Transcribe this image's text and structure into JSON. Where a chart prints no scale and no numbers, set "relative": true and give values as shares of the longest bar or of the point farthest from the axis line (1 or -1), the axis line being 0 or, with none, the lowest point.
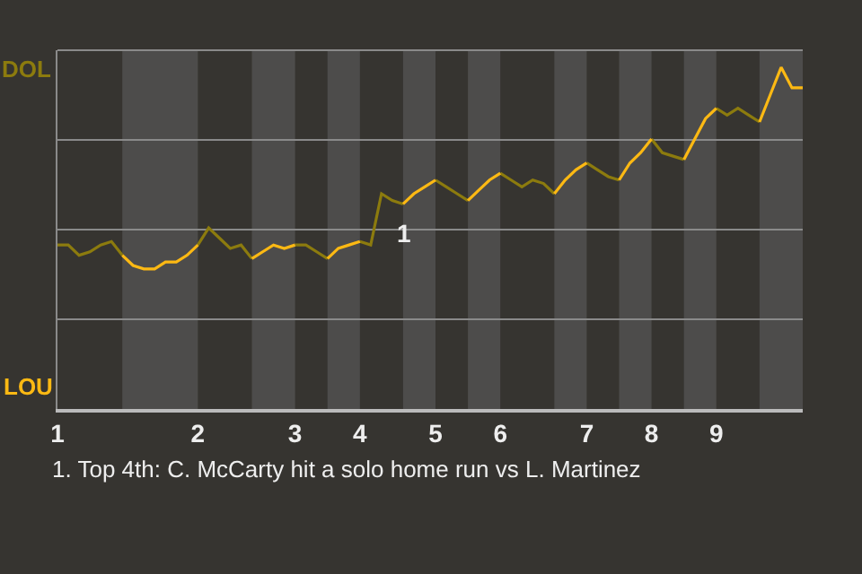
{
  "chart_data": {
    "type": "line",
    "relative": true,
    "categories": [
      "1",
      null,
      null,
      null,
      null,
      null,
      null,
      null,
      null,
      null,
      null,
      null,
      null,
      "2",
      null,
      null,
      null,
      null,
      null,
      null,
      null,
      null,
      "3",
      null,
      null,
      null,
      null,
      null,
      "4",
      null,
      null,
      null,
      null,
      null,
      null,
      "5",
      null,
      null,
      null,
      null,
      null,
      "6",
      null,
      null,
      null,
      null,
      null,
      null,
      null,
      "7",
      null,
      null,
      null,
      null,
      null,
      "8",
      null,
      null,
      null,
      null,
      null,
      "9",
      null,
      null,
      null,
      null,
      null,
      null,
      null,
      null
    ],
    "marker": "none",
    "line_style": "solid",
    "series": [
      {
        "color": "#8c7b0e",
        "values": [
          0.48,
          0.48,
          0.45,
          0.46,
          0.48,
          0.49,
          0.45,
          null,
          null,
          null,
          null,
          null,
          null,
          0.48,
          0.53,
          0.5,
          0.47,
          0.48,
          0.44,
          null,
          null,
          null,
          0.48,
          0.48,
          0.46,
          0.44,
          null,
          null,
          0.49,
          0.48,
          0.63,
          0.61,
          0.6,
          null,
          null,
          0.67,
          0.65,
          0.63,
          0.61,
          null,
          null,
          0.69,
          0.67,
          0.65,
          0.67,
          0.66,
          0.63,
          null,
          null,
          0.72,
          0.7,
          0.68,
          0.67,
          null,
          null,
          0.79,
          0.75,
          0.74,
          0.73,
          null,
          null,
          0.88,
          0.86,
          0.88,
          0.86,
          0.84,
          null,
          null,
          null,
          null
        ]
      },
      {
        "color": "#fdb913",
        "values": [
          null,
          null,
          null,
          null,
          null,
          null,
          0.45,
          0.42,
          0.41,
          0.41,
          0.43,
          0.43,
          0.45,
          0.48,
          null,
          null,
          null,
          null,
          0.44,
          0.46,
          0.48,
          0.47,
          0.48,
          null,
          null,
          0.44,
          0.47,
          0.48,
          0.49,
          null,
          null,
          null,
          0.6,
          0.63,
          0.65,
          0.67,
          null,
          null,
          0.61,
          0.64,
          0.67,
          0.69,
          null,
          null,
          null,
          null,
          0.63,
          0.67,
          0.7,
          0.72,
          null,
          null,
          0.67,
          0.72,
          0.75,
          0.79,
          null,
          null,
          0.73,
          0.79,
          0.85,
          0.88,
          null,
          null,
          null,
          0.84,
          0.92,
          1,
          0.94,
          0.94
        ]
      }
    ],
    "annotations": [
      "DOL",
      "LOU",
      {
        "text": "1",
        "y": 0.63
      },
      "1. Top 4th: C. McCarty hit a solo home run vs L. Martinez"
    ]
  }
}
